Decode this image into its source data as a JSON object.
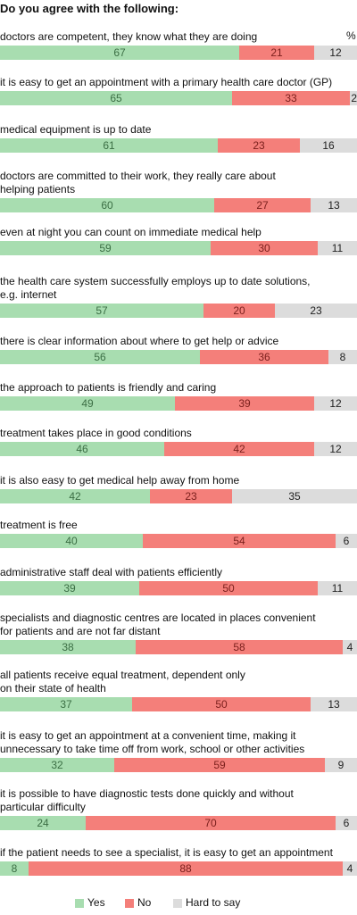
{
  "title": "Do you agree with the following:",
  "unit_label": "%",
  "colors": {
    "yes": "#a8ddb0",
    "no": "#f47f7a",
    "hard": "#dcdcdc"
  },
  "legend": {
    "yes": "Yes",
    "no": "No",
    "hard": "Hard to say"
  },
  "chart_data": {
    "type": "bar",
    "stacked": true,
    "orientation": "horizontal",
    "title": "Do you agree with the following:",
    "unit": "%",
    "categories": [
      "doctors are competent, they know what they are doing",
      "it is easy to get an appointment with a primary health care doctor (GP)",
      "medical equipment is up to date",
      "doctors are committed to their work, they really care about helping patients",
      "even at night you can count on immediate medical help",
      "the health care system successfully employs up to date solutions, e.g. internet",
      "there is clear information about where to get help or advice",
      "the approach to patients is friendly and caring",
      "treatment takes place in good conditions",
      "it is also easy to get medical help away from home",
      "treatment is free",
      "administrative staff deal with patients efficiently",
      "specialists and diagnostic centres are located in places convenient for patients and are not far distant",
      "all patients receive equal treatment, dependent only on their state of health",
      "it is easy to get an appointment at a convenient time, making it unnecessary to take time off from work, school or other activities",
      "it is possible to have diagnostic tests done quickly and without particular difficulty",
      "if the patient needs to see a specialist, it is easy to get an appointment"
    ],
    "series": [
      {
        "name": "Yes",
        "values": [
          67,
          65,
          61,
          60,
          59,
          57,
          56,
          49,
          46,
          42,
          40,
          39,
          38,
          37,
          32,
          24,
          8
        ]
      },
      {
        "name": "No",
        "values": [
          21,
          33,
          23,
          27,
          30,
          20,
          36,
          39,
          42,
          23,
          54,
          50,
          58,
          50,
          59,
          70,
          88
        ]
      },
      {
        "name": "Hard to say",
        "values": [
          12,
          2,
          16,
          13,
          11,
          23,
          8,
          12,
          12,
          35,
          6,
          11,
          4,
          13,
          9,
          6,
          4
        ]
      }
    ],
    "xlim": [
      0,
      100
    ],
    "legend_position": "bottom"
  },
  "questions": [
    {
      "lines": [
        "doctors are competent, they know what they are doing"
      ]
    },
    {
      "lines": [
        "it is easy to get an appointment with a primary health care doctor (GP)"
      ]
    },
    {
      "lines": [
        "medical equipment is up to date"
      ]
    },
    {
      "lines": [
        "doctors are committed to their work, they really care about",
        "helping patients"
      ]
    },
    {
      "lines": [
        "even at night you can count on immediate medical help"
      ]
    },
    {
      "lines": [
        "the health care system successfully employs up to date solutions,",
        "e.g. internet"
      ]
    },
    {
      "lines": [
        "there is clear information about where to get help or advice"
      ]
    },
    {
      "lines": [
        "the approach to patients is friendly and caring"
      ]
    },
    {
      "lines": [
        "treatment takes place in good conditions"
      ]
    },
    {
      "lines": [
        "it is also easy to get medical help away from home"
      ]
    },
    {
      "lines": [
        "treatment is free"
      ]
    },
    {
      "lines": [
        "administrative staff deal with patients efficiently"
      ]
    },
    {
      "lines": [
        "specialists and diagnostic centres are located in places convenient",
        "for patients and are not far distant"
      ]
    },
    {
      "lines": [
        "all patients receive equal treatment, dependent only",
        "on their state of health"
      ]
    },
    {
      "lines": [
        "it is easy to get an appointment at a convenient time, making it",
        "unnecessary to take time off from work, school or other activities"
      ]
    },
    {
      "lines": [
        "it is possible to have diagnostic tests done quickly and without",
        "particular difficulty"
      ]
    },
    {
      "lines": [
        "if the patient needs to see a specialist, it is easy to get an appointment"
      ]
    }
  ]
}
